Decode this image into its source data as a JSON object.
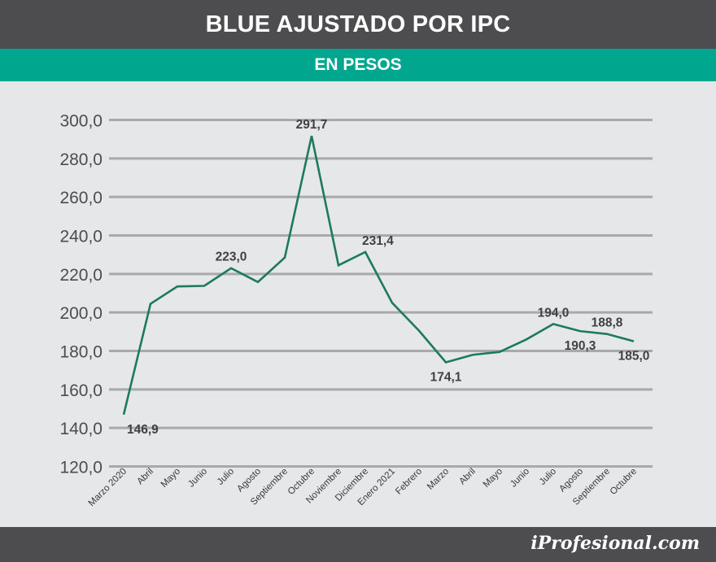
{
  "header": {
    "title": "BLUE AJUSTADO POR IPC",
    "subtitle": "EN PESOS"
  },
  "footer": {
    "brand": "iProfesional.com"
  },
  "colors": {
    "line": "#1d7a5c",
    "accent": "#00a68e",
    "header_bg": "#4d4d4f",
    "plot_bg": "#e6e7e8",
    "grid": "#a7a9ac"
  },
  "chart_data": {
    "type": "line",
    "title": "BLUE AJUSTADO POR IPC",
    "subtitle": "EN PESOS",
    "xlabel": "",
    "ylabel": "",
    "ylim": [
      120,
      300
    ],
    "ytick_step": 20,
    "ytick_labels": [
      "120,0",
      "140,0",
      "160,0",
      "180,0",
      "200,0",
      "220,0",
      "240,0",
      "260,0",
      "280,0",
      "300,0"
    ],
    "grid": true,
    "categories": [
      "Marzo 2020",
      "Abril",
      "Mayo",
      "Junio",
      "Julio",
      "Agosto",
      "Septiembre",
      "Octubre",
      "Noviembre",
      "Diciembre",
      "Enero 2021",
      "Febrero",
      "Marzo",
      "Abril",
      "Mayo",
      "Junio",
      "Julio",
      "Agosto",
      "Septiembre",
      "Octubre"
    ],
    "series": [
      {
        "values": [
          146.9,
          204.5,
          213.5,
          213.8,
          223.0,
          215.8,
          228.5,
          291.7,
          224.5,
          231.4,
          205.0,
          190.5,
          174.1,
          178.0,
          179.5,
          186.0,
          194.0,
          190.3,
          188.8,
          185.0
        ]
      }
    ],
    "data_labels": [
      {
        "index": 0,
        "text": "146,9",
        "placement": "below-right"
      },
      {
        "index": 4,
        "text": "223,0",
        "placement": "above"
      },
      {
        "index": 7,
        "text": "291,7",
        "placement": "above"
      },
      {
        "index": 9,
        "text": "231,4",
        "placement": "above-right"
      },
      {
        "index": 12,
        "text": "174,1",
        "placement": "below"
      },
      {
        "index": 16,
        "text": "194,0",
        "placement": "above"
      },
      {
        "index": 17,
        "text": "190,3",
        "placement": "below"
      },
      {
        "index": 18,
        "text": "188,8",
        "placement": "above"
      },
      {
        "index": 19,
        "text": "185,0",
        "placement": "below"
      }
    ]
  }
}
